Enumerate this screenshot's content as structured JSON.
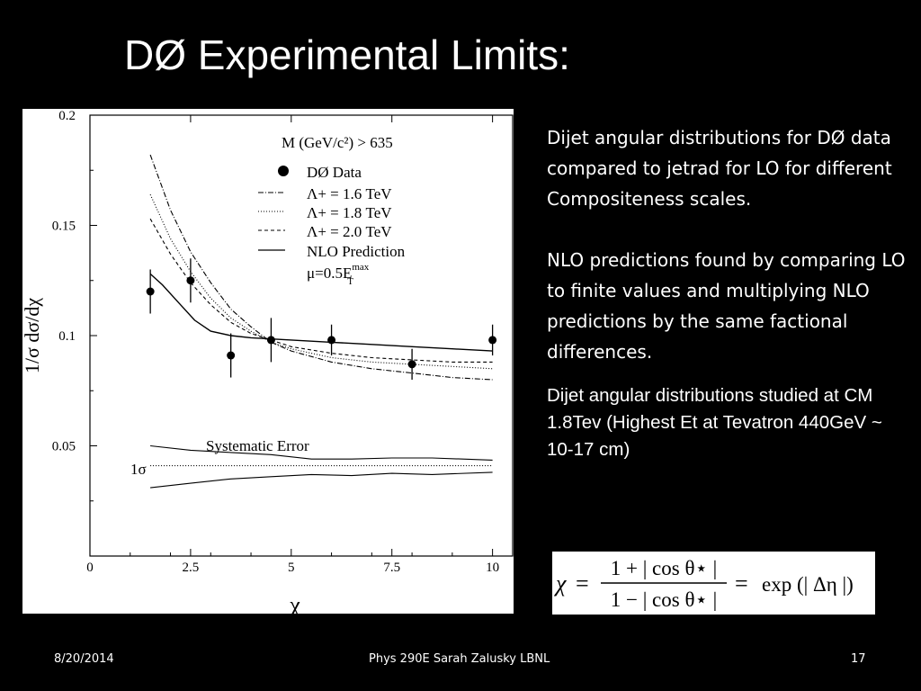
{
  "slide": {
    "title": "DØ Experimental Limits:",
    "description_1": "Dijet angular distributions for DØ data  compared to jetrad for LO for different Compositeness scales.",
    "description_2": "NLO predictions found by comparing LO to finite values and multiplying NLO predictions by the same factional differences.",
    "description_3": "Dijet angular distributions studied at CM 1.8Tev (Highest Et at Tevatron 440GeV ~ 10-17 cm)",
    "formula": {
      "lhs": "χ",
      "numerator": "1 + | cos θ⋆ |",
      "denominator": "1 − | cos θ⋆ |",
      "rhs": "exp (| Δη |)"
    },
    "footer": {
      "date": "8/20/2014",
      "center": "Phys 290E Sarah Zalusky LBNL",
      "page": "17"
    }
  },
  "chart_data": {
    "type": "scatter",
    "xlabel": "χ",
    "ylabel": "1/σ dσ/dχ",
    "xlim": [
      0,
      10.5
    ],
    "ylim": [
      0,
      0.2
    ],
    "x_ticks": [
      "0",
      "2.5",
      "5",
      "7.5",
      "10"
    ],
    "y_ticks": [
      "0.05",
      "0.1",
      "0.15",
      "0.2"
    ],
    "x_tick_values": [
      0,
      2.5,
      5,
      7.5,
      10
    ],
    "y_tick_values": [
      0.05,
      0.1,
      0.15,
      0.2
    ],
    "grid": false,
    "legend_position": "top-right",
    "annotation_cut": "M (GeV/c²) > 635",
    "annotation_scale": "μ=0.5E",
    "annotation_scale_sup": "max",
    "annotation_scale_sub": "T",
    "systematic_label": "Systematic Error",
    "sigma_label": "1σ",
    "series": [
      {
        "name": "DØ Data",
        "style": "points",
        "x": [
          1.5,
          2.5,
          3.5,
          4.5,
          6.0,
          8.0,
          10.0
        ],
        "y": [
          0.12,
          0.125,
          0.091,
          0.098,
          0.098,
          0.087,
          0.098
        ],
        "err": [
          0.01,
          0.01,
          0.01,
          0.01,
          0.007,
          0.007,
          0.007
        ]
      },
      {
        "name": "Λ+ = 1.6 TeV",
        "style": "dashdot",
        "x": [
          1.5,
          2,
          2.5,
          3,
          3.5,
          4,
          4.5,
          5,
          6,
          7,
          8,
          9,
          10
        ],
        "y": [
          0.182,
          0.157,
          0.138,
          0.124,
          0.112,
          0.104,
          0.097,
          0.093,
          0.088,
          0.085,
          0.083,
          0.081,
          0.08
        ]
      },
      {
        "name": "Λ+ = 1.8 TeV",
        "style": "dotted",
        "x": [
          1.5,
          2,
          2.5,
          3,
          3.5,
          4,
          4.5,
          5,
          6,
          7,
          8,
          9,
          10
        ],
        "y": [
          0.164,
          0.144,
          0.129,
          0.117,
          0.108,
          0.102,
          0.097,
          0.094,
          0.09,
          0.088,
          0.087,
          0.086,
          0.085
        ]
      },
      {
        "name": "Λ+ = 2.0 TeV",
        "style": "dashed",
        "x": [
          1.5,
          2,
          2.5,
          3,
          3.5,
          4,
          4.5,
          5,
          6,
          7,
          8,
          9,
          10
        ],
        "y": [
          0.153,
          0.137,
          0.124,
          0.114,
          0.106,
          0.101,
          0.098,
          0.095,
          0.092,
          0.09,
          0.089,
          0.088,
          0.088
        ]
      },
      {
        "name": "NLO Prediction",
        "style": "solid",
        "x": [
          1.5,
          1.8,
          2.2,
          2.6,
          3.0,
          3.5,
          4.0,
          4.5,
          5,
          6,
          7,
          8,
          9,
          10
        ],
        "y": [
          0.128,
          0.123,
          0.115,
          0.107,
          0.102,
          0.1,
          0.099,
          0.0985,
          0.098,
          0.097,
          0.096,
          0.095,
          0.094,
          0.093
        ]
      },
      {
        "name": "",
        "style": "sys-upper",
        "x": [
          1.5,
          2.5,
          3.5,
          4.5,
          5.5,
          6.5,
          7.5,
          8.5,
          10
        ],
        "y": [
          0.05,
          0.048,
          0.047,
          0.046,
          0.044,
          0.044,
          0.0445,
          0.0445,
          0.0435
        ]
      },
      {
        "name": "",
        "style": "sys-dotted",
        "x": [
          1.5,
          10
        ],
        "y": [
          0.041,
          0.041
        ]
      },
      {
        "name": "",
        "style": "sys-lower",
        "x": [
          1.5,
          2.5,
          3.5,
          4.5,
          5.5,
          6.5,
          7.5,
          8.5,
          10
        ],
        "y": [
          0.031,
          0.033,
          0.035,
          0.036,
          0.037,
          0.0365,
          0.0375,
          0.037,
          0.038
        ]
      }
    ]
  }
}
